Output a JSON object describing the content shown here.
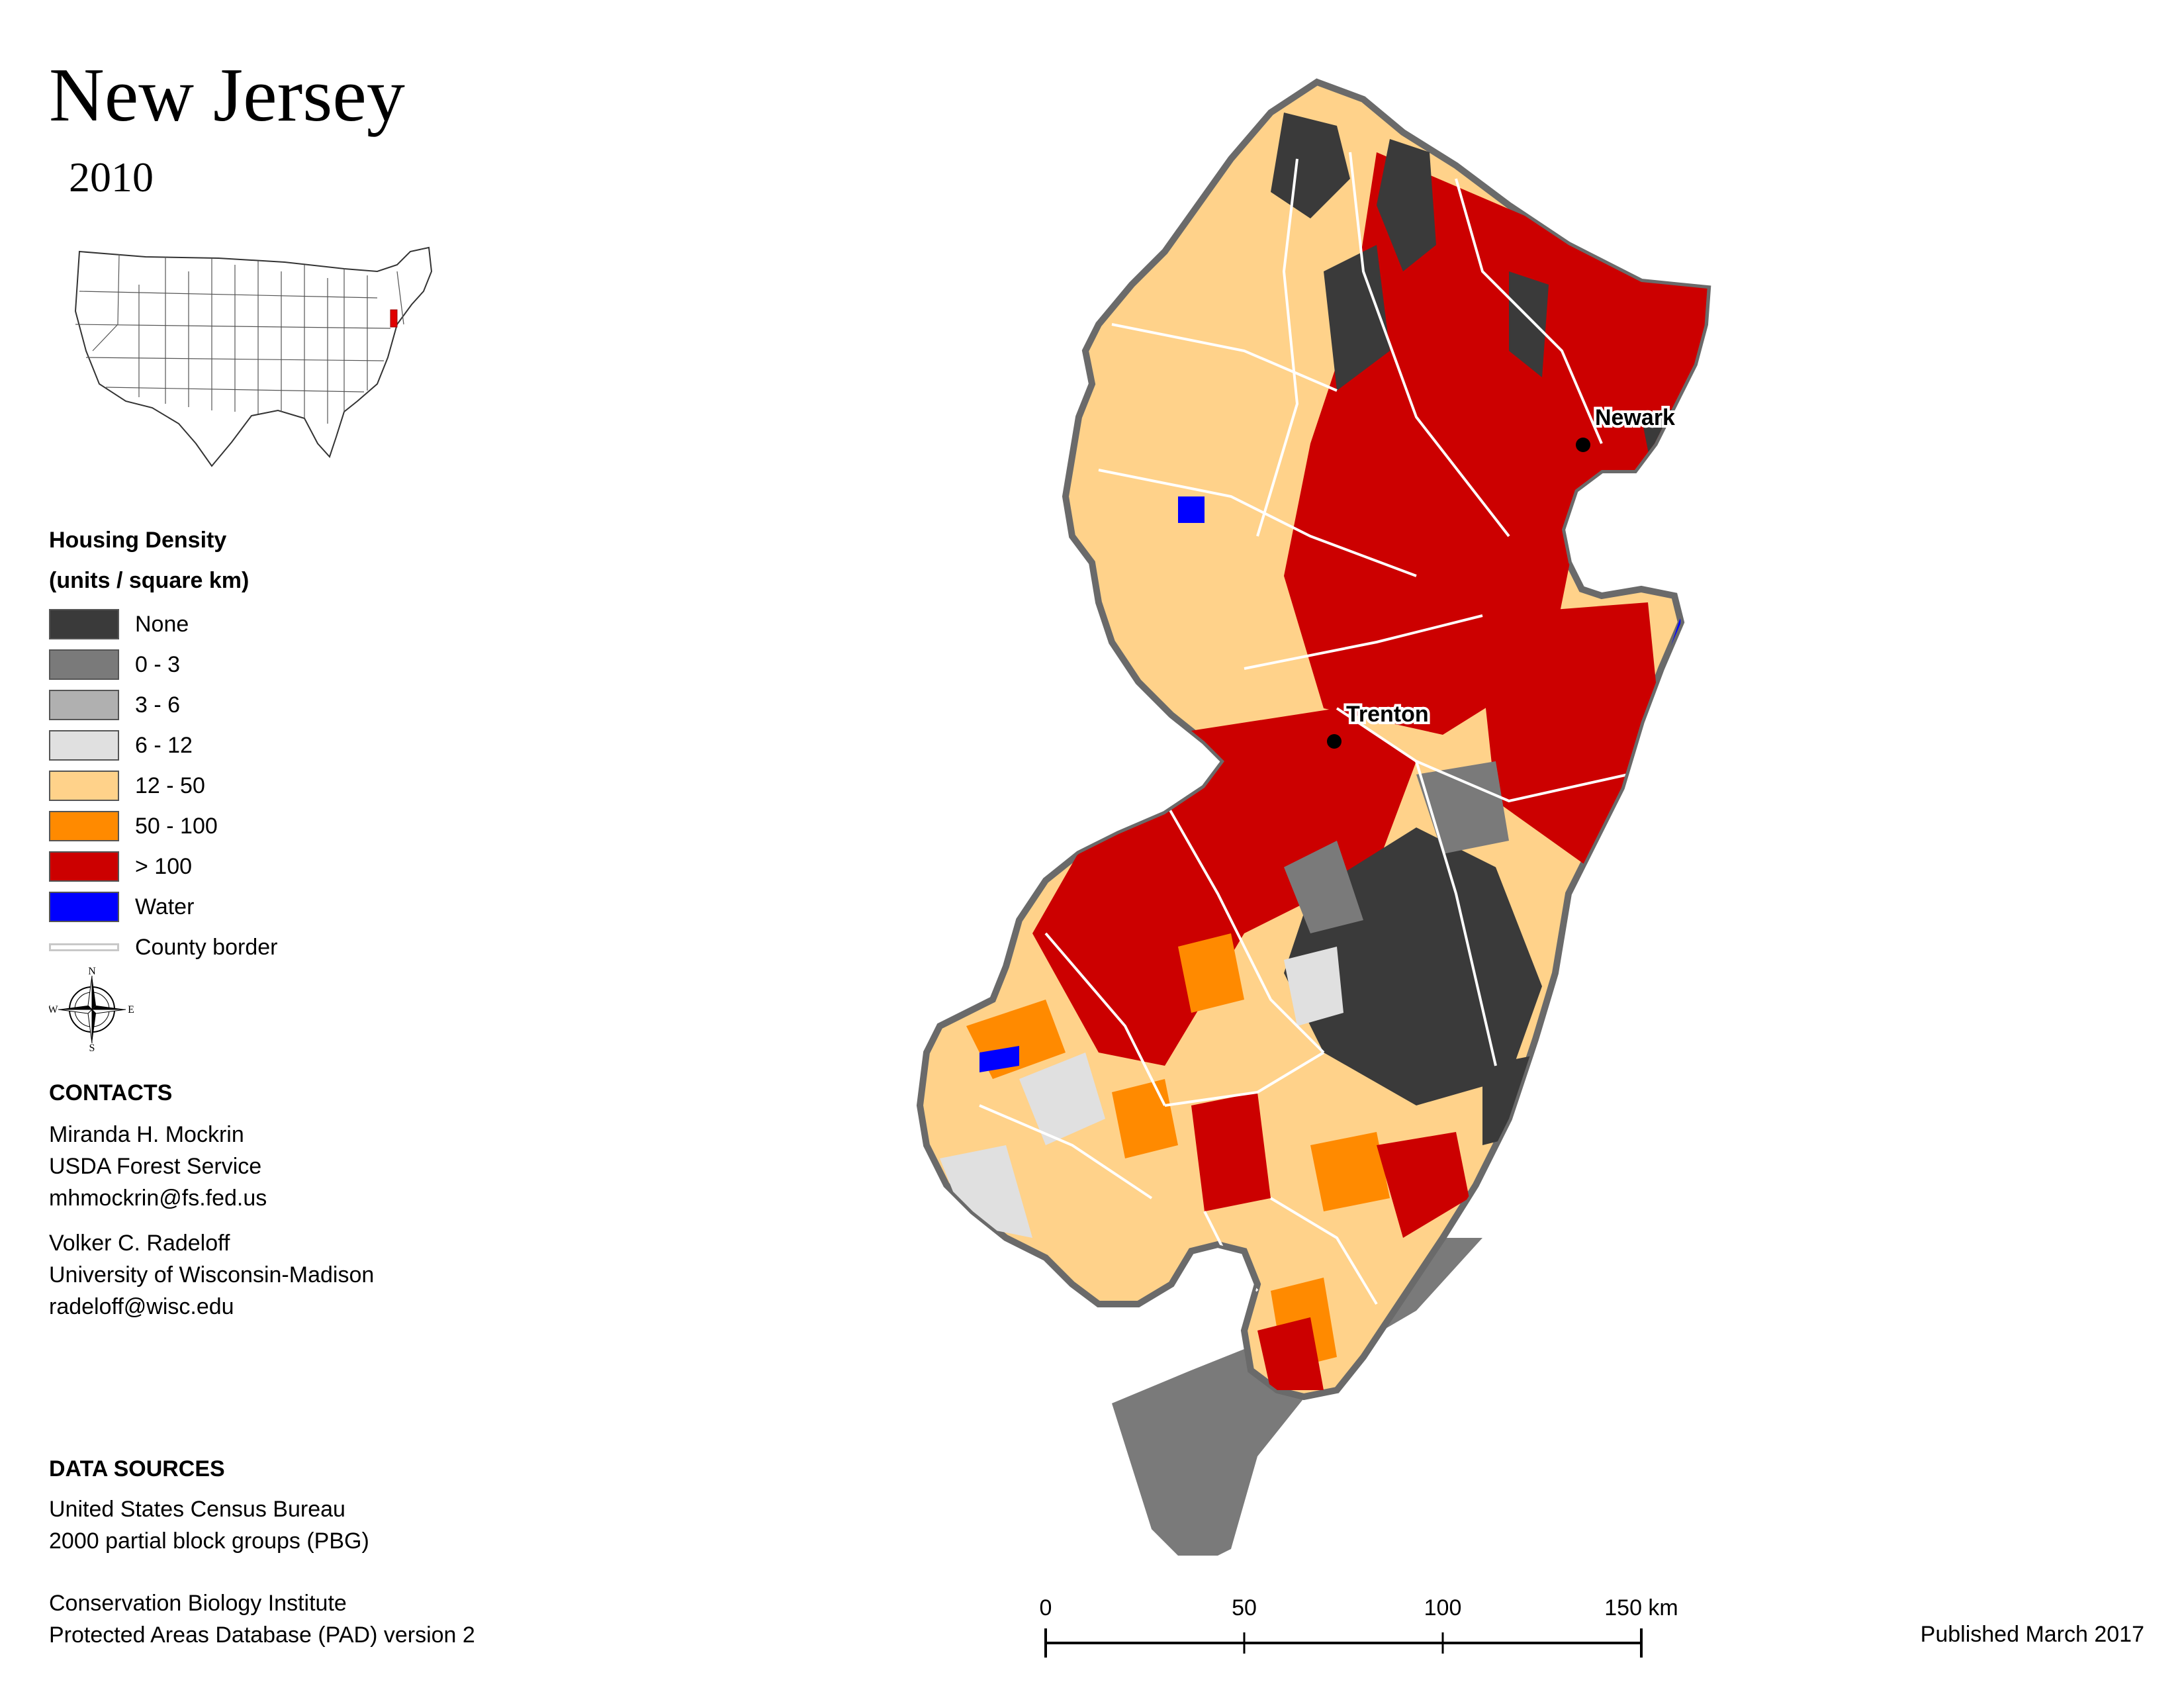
{
  "title": "New Jersey",
  "year": "2010",
  "legend": {
    "title_line1": "Housing Density",
    "title_line2": "(units / square km)",
    "items": [
      {
        "label": "None",
        "color": "#3a3a3a"
      },
      {
        "label": "0 - 3",
        "color": "#7a7a7a"
      },
      {
        "label": "3 - 6",
        "color": "#b0b0b0"
      },
      {
        "label": "6 - 12",
        "color": "#e0e0e0"
      },
      {
        "label": "12 - 50",
        "color": "#ffd28a"
      },
      {
        "label": "50 - 100",
        "color": "#ff8a00"
      },
      {
        "label": "> 100",
        "color": "#cc0000"
      },
      {
        "label": "Water",
        "color": "#0000ff"
      }
    ],
    "county_border_label": "County border"
  },
  "compass": {
    "n": "N",
    "s": "S",
    "e": "E",
    "w": "W"
  },
  "contacts": {
    "heading": "CONTACTS",
    "people": [
      {
        "name": "Miranda H. Mockrin",
        "org": "USDA Forest Service",
        "email": "mhmockrin@fs.fed.us"
      },
      {
        "name": "Volker C. Radeloff",
        "org": "University of Wisconsin-Madison",
        "email": "radeloff@wisc.edu"
      }
    ]
  },
  "data_sources": {
    "heading": "DATA SOURCES",
    "source1_line1": "United States Census Bureau",
    "source1_line2": "2000 partial block groups (PBG)",
    "source2_line1": "Conservation Biology Institute",
    "source2_line2": "Protected Areas Database (PAD) version 2"
  },
  "cities": [
    {
      "name": "Newark"
    },
    {
      "name": "Trenton"
    }
  ],
  "scale": {
    "ticks": [
      "0",
      "50",
      "100",
      "150 km"
    ]
  },
  "published": "Published March 2017"
}
